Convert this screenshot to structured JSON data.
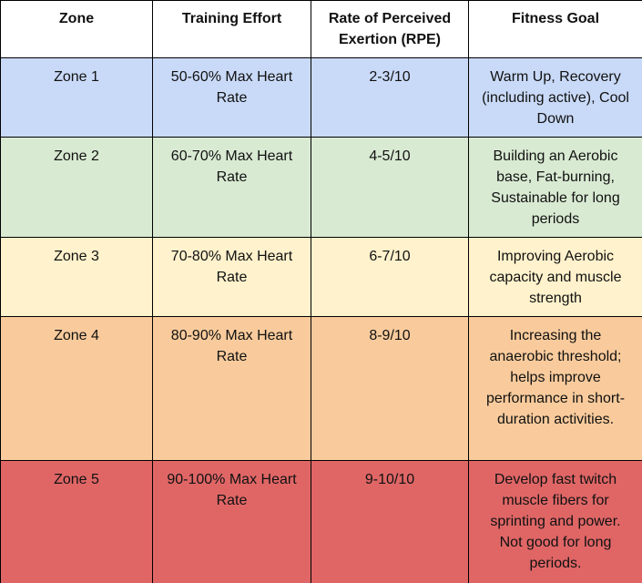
{
  "table": {
    "header": [
      "Zone",
      "Training Effort",
      "Rate of Perceived Exertion (RPE)",
      "Fitness Goal"
    ],
    "rows": [
      [
        "Zone 1",
        "50-60% Max Heart Rate",
        "2-3/10",
        "Warm Up, Recovery (including active), Cool Down"
      ],
      [
        "Zone 2",
        "60-70% Max Heart Rate",
        "4-5/10",
        "Building an Aerobic base, Fat-burning, Sustainable for long periods"
      ],
      [
        "Zone 3",
        "70-80% Max Heart Rate",
        "6-7/10",
        "Improving Aerobic capacity and muscle strength"
      ],
      [
        "Zone 4",
        "80-90% Max Heart Rate",
        "8-9/10",
        "Increasing the anaerobic threshold; helps improve performance in short-duration activities."
      ],
      [
        "Zone 5",
        "90-100% Max Heart Rate",
        "9-10/10",
        "Develop fast twitch muscle fibers for sprinting and power. Not good for long periods."
      ]
    ]
  }
}
